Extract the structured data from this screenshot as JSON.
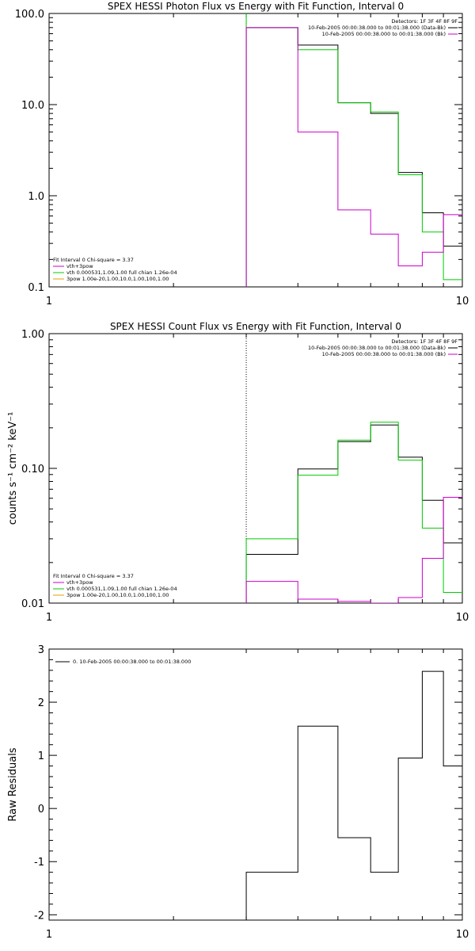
{
  "colors": {
    "background": "#ffffff",
    "axis": "#000000",
    "data": "#000000",
    "model": "#00cc00",
    "background_series": "#cc00cc",
    "component_vth": "#00cc00",
    "component_3pow": "#e0a000",
    "legend_fit_line": "#cc00cc"
  },
  "chart_data": [
    {
      "type": "line",
      "step": true,
      "title": "SPEX HESSI Photon Flux vs Energy with Fit Function, Interval 0",
      "xlabel": "",
      "ylabel": "",
      "xscale": "log",
      "yscale": "log",
      "xlim": [
        1,
        10
      ],
      "ylim": [
        0.1,
        100
      ],
      "x_ticks": [
        "1",
        "10"
      ],
      "y_ticks": [
        "0.1",
        "1.0",
        "10.0",
        "100.0"
      ],
      "y_tick_values": [
        0.1,
        1,
        10,
        100
      ],
      "vertical_lines": [
        {
          "x": 3.0,
          "style": "dotted",
          "color": "#000000"
        },
        {
          "x": 3.0,
          "style": "solid",
          "color": "#00cc00"
        }
      ],
      "legend_top_right": [
        {
          "text": "Detectors: 1F 3F 4F 8F 9F",
          "color": ""
        },
        {
          "text": "10-Feb-2005 00:00:38.000 to 00:01:38.000 (Data-Bk)",
          "color": "#000000"
        },
        {
          "text": "10-Feb-2005 00:00:38.000 to 00:01:38.000 (Bk)",
          "color": "#cc00cc"
        }
      ],
      "legend_bottom_left": [
        {
          "text": "Fit Interval 0   Chi-square = 3.37",
          "color": ""
        },
        {
          "text": "vth+3pow",
          "color": "#cc00cc"
        },
        {
          "text": "vth 0.000531,1.09,1.00  full chian 1.26e-04",
          "color": "#00cc00"
        },
        {
          "text": "3pow 1.00e-20,1.00,10.0,1.00,100,1.00",
          "color": "#e0a000"
        }
      ],
      "bin_edges": [
        3.0,
        4.0,
        5.0,
        6.0,
        7.0,
        8.0,
        9.0,
        10.0
      ],
      "series": [
        {
          "name": "Data-Bk",
          "color": "#000000",
          "values": [
            70,
            45,
            10.5,
            8.0,
            1.8,
            0.65,
            0.28
          ]
        },
        {
          "name": "Model",
          "color": "#00cc00",
          "values": [
            70,
            40,
            10.5,
            8.3,
            1.7,
            0.4,
            0.12
          ]
        },
        {
          "name": "Bk",
          "color": "#cc00cc",
          "values": [
            70,
            5.0,
            0.7,
            0.38,
            0.17,
            0.24,
            0.62
          ]
        }
      ]
    },
    {
      "type": "line",
      "step": true,
      "title": "SPEX HESSI Count Flux vs Energy with Fit Function, Interval 0",
      "xlabel": "",
      "ylabel": "counts s⁻¹ cm⁻² keV⁻¹",
      "xscale": "log",
      "yscale": "log",
      "xlim": [
        1,
        10
      ],
      "ylim": [
        0.01,
        1
      ],
      "x_ticks": [
        "1",
        "10"
      ],
      "y_ticks": [
        "0.01",
        "0.10",
        "1.00"
      ],
      "y_tick_values": [
        0.01,
        0.1,
        1
      ],
      "vertical_lines": [
        {
          "x": 3.0,
          "style": "dotted",
          "color": "#000000"
        }
      ],
      "legend_top_right": [
        {
          "text": "Detectors: 1F 3F 4F 8F 9F",
          "color": ""
        },
        {
          "text": "10-Feb-2005 00:00:38.000 to 00:01:38.000 (Data-Bk)",
          "color": "#000000"
        },
        {
          "text": "10-Feb-2005 00:00:38.000 to 00:01:38.000 (Bk)",
          "color": "#cc00cc"
        }
      ],
      "legend_bottom_left": [
        {
          "text": "Fit Interval 0   Chi-square = 3.37",
          "color": ""
        },
        {
          "text": "vth+3pow",
          "color": "#cc00cc"
        },
        {
          "text": "vth 0.000531,1.09,1.00  full chian 1.26e-04",
          "color": "#00cc00"
        },
        {
          "text": "3pow 1.00e-20,1.00,10.0,1.00,100,1.00",
          "color": "#e0a000"
        }
      ],
      "bin_edges": [
        3.0,
        4.0,
        5.0,
        6.0,
        7.0,
        8.0,
        9.0,
        10.0
      ],
      "series": [
        {
          "name": "Data-Bk",
          "color": "#000000",
          "values": [
            0.023,
            0.099,
            0.158,
            0.21,
            0.121,
            0.058,
            0.028
          ]
        },
        {
          "name": "Model",
          "color": "#00cc00",
          "values": [
            0.03,
            0.089,
            0.162,
            0.22,
            0.115,
            0.036,
            0.012
          ]
        },
        {
          "name": "Bk",
          "color": "#cc00cc",
          "values": [
            0.0145,
            0.0107,
            0.0103,
            0.01,
            0.011,
            0.0215,
            0.061
          ]
        }
      ]
    },
    {
      "type": "line",
      "step": true,
      "title": "",
      "xlabel": "",
      "ylabel": "Raw Residuals",
      "xscale": "log",
      "yscale": "linear",
      "xlim": [
        1,
        10
      ],
      "ylim": [
        -2.1,
        3
      ],
      "x_ticks": [
        "1",
        "10"
      ],
      "y_ticks": [
        "-2",
        "-1",
        "0",
        "1",
        "2",
        "3"
      ],
      "y_tick_values": [
        -2,
        -1,
        0,
        1,
        2,
        3
      ],
      "legend_top_left": [
        {
          "text": "0. 10-Feb-2005 00:00:38.000 to 00:01:38.000",
          "color": "#000000"
        }
      ],
      "bin_edges": [
        3.0,
        4.0,
        5.0,
        6.0,
        7.0,
        8.0,
        9.0,
        10.0
      ],
      "series": [
        {
          "name": "",
          "color": "#000000",
          "values": [
            -1.2,
            1.55,
            -0.55,
            -1.2,
            0.95,
            2.58,
            0.8
          ]
        }
      ]
    }
  ]
}
